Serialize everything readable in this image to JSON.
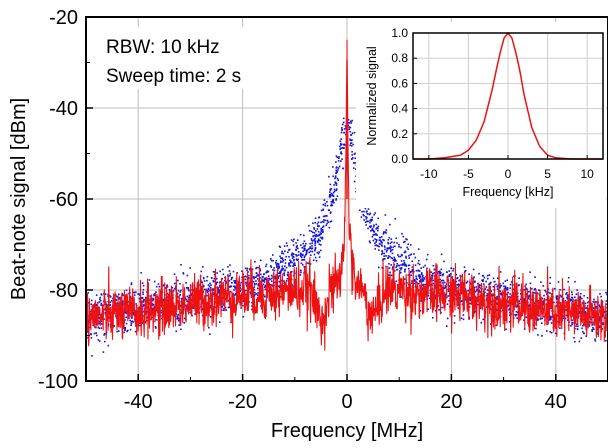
{
  "chart_data": [
    {
      "type": "scatter",
      "xlabel": "Frequency [MHz]",
      "ylabel": "Beat-note signal [dBm]",
      "xlim": [
        -50,
        50
      ],
      "ylim": [
        -100,
        -20
      ],
      "x_ticks": [
        -40,
        -20,
        0,
        20,
        40
      ],
      "y_ticks": [
        -100,
        -80,
        -60,
        -40,
        -20
      ],
      "grid": true,
      "annotations": [
        "RBW: 10 kHz",
        "Sweep time: 2 s"
      ],
      "series": [
        {
          "color": "#1010e0",
          "style": "dots",
          "envelope": {
            "x": [
              -50,
              -40,
              -30,
              -20,
              -15,
              -10,
              -7,
              -5,
              -3,
              -2,
              -1,
              -0.5,
              0,
              0.5,
              1,
              2,
              3,
              5,
              7,
              10,
              15,
              20,
              30,
              40,
              50
            ],
            "y": [
              -86,
              -84,
              -82,
              -80,
              -78,
              -74,
              -71,
              -67,
              -60,
              -55,
              -49,
              -45,
              -42,
              -45,
              -49,
              -55,
              -60,
              -67,
              -71,
              -74,
              -78,
              -80,
              -82,
              -84,
              -86
            ]
          },
          "noise_db": 2.5,
          "points": 3000
        },
        {
          "color": "#ee1111",
          "style": "line",
          "envelope": {
            "x": [
              -50,
              -40,
              -30,
              -20,
              -15,
              -10,
              -7,
              -6,
              -5,
              -4,
              -3,
              -2,
              -1,
              -0.5,
              -0.2,
              0,
              0.2,
              0.5,
              1,
              2,
              3,
              4,
              5,
              6,
              7,
              10,
              15,
              20,
              30,
              40,
              50
            ],
            "y": [
              -86,
              -85,
              -83,
              -81,
              -81,
              -80,
              -80,
              -84,
              -86,
              -84,
              -80,
              -79,
              -76,
              -68,
              -50,
              -25,
              -50,
              -68,
              -76,
              -79,
              -80,
              -84,
              -86,
              -84,
              -80,
              -80,
              -81,
              -81,
              -83,
              -85,
              -86
            ]
          },
          "noise_db": 3,
          "points": 1400
        }
      ]
    },
    {
      "type": "line",
      "xlabel": "Frequency [kHz]",
      "ylabel": "Normalized signal",
      "xlim": [
        -12,
        12
      ],
      "ylim": [
        0,
        1
      ],
      "x_ticks": [
        -10,
        -5,
        0,
        5,
        10
      ],
      "y_ticks": [
        0.0,
        0.2,
        0.4,
        0.6,
        0.8,
        1.0
      ],
      "y_tick_labels": [
        "0.0",
        "0.2",
        "0.4",
        "0.6",
        "0.8",
        "1.0"
      ],
      "grid": true,
      "series": [
        {
          "color": "#ee1111",
          "x": [
            -12,
            -10,
            -8,
            -6,
            -5,
            -4,
            -3,
            -2,
            -1.5,
            -1,
            -0.5,
            0,
            0.5,
            1,
            1.5,
            2,
            3,
            4,
            5,
            6,
            8,
            10,
            12
          ],
          "y": [
            0.0,
            0.0,
            0.01,
            0.03,
            0.07,
            0.15,
            0.3,
            0.55,
            0.7,
            0.84,
            0.96,
            1.0,
            0.96,
            0.84,
            0.7,
            0.52,
            0.25,
            0.1,
            0.03,
            0.01,
            0.0,
            0.0,
            0.0
          ]
        }
      ]
    }
  ]
}
